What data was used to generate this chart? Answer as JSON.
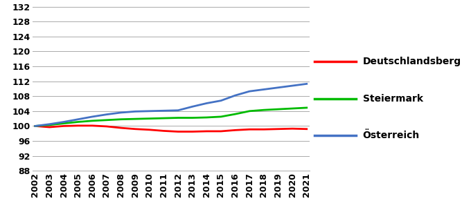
{
  "years": [
    2002,
    2003,
    2004,
    2005,
    2006,
    2007,
    2008,
    2009,
    2010,
    2011,
    2012,
    2013,
    2014,
    2015,
    2016,
    2017,
    2018,
    2019,
    2020,
    2021
  ],
  "deutschlandsberg": [
    100.0,
    99.7,
    100.0,
    100.1,
    100.1,
    99.9,
    99.5,
    99.2,
    99.0,
    98.7,
    98.5,
    98.5,
    98.6,
    98.6,
    98.9,
    99.1,
    99.1,
    99.2,
    99.3,
    99.2
  ],
  "steiermark": [
    100.0,
    100.3,
    100.7,
    101.1,
    101.4,
    101.6,
    101.8,
    101.9,
    102.0,
    102.1,
    102.2,
    102.2,
    102.3,
    102.5,
    103.2,
    104.0,
    104.3,
    104.5,
    104.7,
    104.9
  ],
  "oesterreich": [
    100.0,
    100.5,
    101.1,
    101.8,
    102.5,
    103.1,
    103.6,
    103.9,
    104.0,
    104.1,
    104.2,
    105.2,
    106.1,
    106.8,
    108.2,
    109.3,
    109.8,
    110.3,
    110.8,
    111.3
  ],
  "line_colors": {
    "deutschlandsberg": "#FF0000",
    "steiermark": "#00BB00",
    "oesterreich": "#4472C4"
  },
  "legend_labels": [
    "Deutschlandsberg",
    "Steiermark",
    "Österreich"
  ],
  "yticks": [
    88,
    92,
    96,
    100,
    104,
    108,
    112,
    116,
    120,
    124,
    128,
    132
  ],
  "ylim": [
    88,
    132
  ],
  "xlim_min": 2002,
  "xlim_max": 2021,
  "background_color": "#FFFFFF",
  "grid_color": "#AAAAAA",
  "line_width": 2.0,
  "tick_fontsize": 9,
  "legend_fontsize": 10
}
